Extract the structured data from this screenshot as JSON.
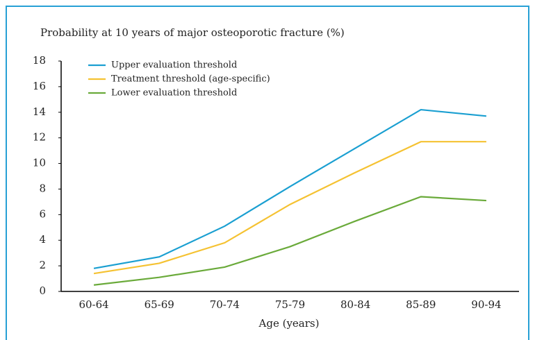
{
  "chart_data": {
    "type": "line",
    "title": "Probability at 10 years of major osteoporotic fracture (%)",
    "x_label": "Age (years)",
    "categories": [
      "60-64",
      "65-69",
      "70-74",
      "75-79",
      "80-84",
      "85-89",
      "90-94"
    ],
    "series": [
      {
        "name": "Upper evaluation threshold",
        "color": "#1a9fd1",
        "values": [
          1.8,
          2.7,
          5.1,
          8.2,
          11.2,
          14.2,
          13.7
        ]
      },
      {
        "name": "Treatment threshold (age-specific)",
        "color": "#f5c232",
        "values": [
          1.4,
          2.2,
          3.8,
          6.8,
          9.3,
          11.7,
          11.7
        ]
      },
      {
        "name": "Lower evaluation threshold",
        "color": "#6aaa3a",
        "values": [
          0.5,
          1.1,
          1.9,
          3.5,
          5.5,
          7.4,
          7.1
        ]
      }
    ],
    "ylim": [
      0,
      18
    ],
    "yticks": [
      0,
      2,
      4,
      6,
      8,
      10,
      12,
      14,
      16,
      18
    ],
    "grid": false,
    "legend": "top-left"
  }
}
